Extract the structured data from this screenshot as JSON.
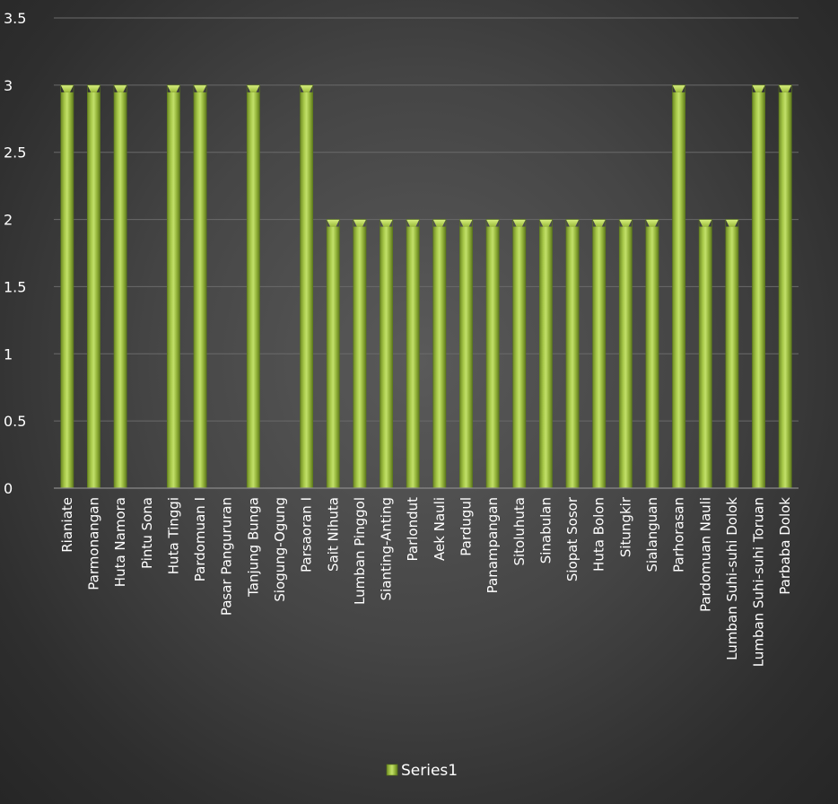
{
  "chart_data": {
    "type": "bar",
    "categories": [
      "Rianiate",
      "Parmonangan",
      "Huta Namora",
      "Pintu Sona",
      "Huta Tinggi",
      "Pardomuan I",
      "Pasar Pangururan",
      "Tanjung Bunga",
      "Siogung-Ogung",
      "Parsaoran I",
      "Sait Nihuta",
      "Lumban Pinggol",
      "Sianting-Anting",
      "Parlondut",
      "Aek Nauli",
      "Pardugul",
      "Panampangan",
      "Sitoluhuta",
      "Sinabulan",
      "Siopat Sosor",
      "Huta Bolon",
      "Situngkir",
      "Sialanguan",
      "Parhorasan",
      "Pardomuan Nauli",
      "Lumban Suhi-suhi  Dolok",
      "Lumban Suhi-suhi Toruan",
      "Parbaba Dolok"
    ],
    "series": [
      {
        "name": "Series1",
        "values": [
          3,
          3,
          3,
          0,
          3,
          3,
          0,
          3,
          0,
          3,
          2,
          2,
          2,
          2,
          2,
          2,
          2,
          2,
          2,
          2,
          2,
          2,
          2,
          3,
          2,
          2,
          3,
          3
        ]
      }
    ],
    "yticks": [
      "0",
      "0.5",
      "1",
      "1.5",
      "2",
      "2.5",
      "3",
      "3.5"
    ],
    "ylim": [
      0,
      3.5
    ],
    "grid": true,
    "legend_position": "bottom",
    "colors": {
      "bar": "#9bbb3b",
      "bar_light": "#c2e06a",
      "bar_dark": "#6e8a24",
      "grid": "#6a6a6a"
    }
  }
}
